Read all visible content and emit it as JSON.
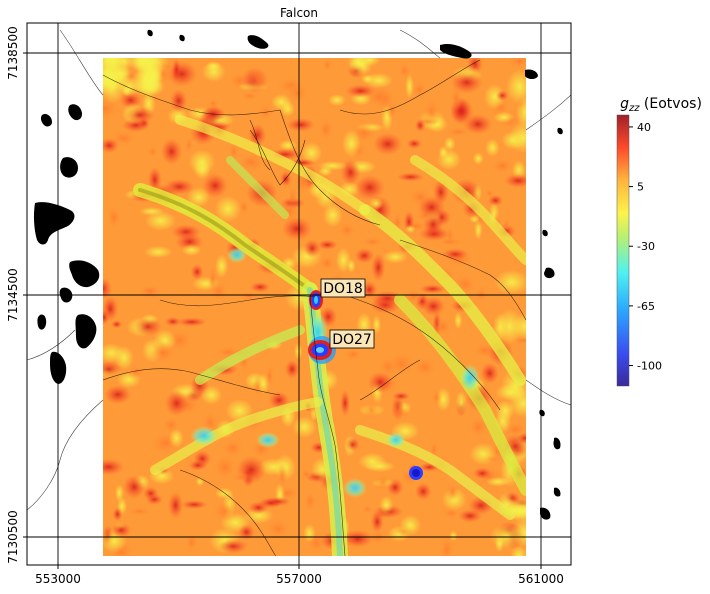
{
  "map": {
    "title": "Falcon",
    "x_ticks": [
      "553000",
      "557000",
      "561000"
    ],
    "y_ticks": [
      "7138500",
      "7134500",
      "7130500"
    ],
    "annotations": [
      "DO18",
      "DO27"
    ],
    "colorbar": {
      "title": "g_zz (Eotvos)",
      "title_base": "g",
      "title_sub": "zz",
      "title_unit": " (Eotvos)",
      "ticks": [
        "40",
        "5",
        "-30",
        "-65",
        "-100"
      ],
      "range": [
        -112,
        47
      ],
      "tick_values": [
        40,
        5,
        -30,
        -65,
        -100
      ]
    },
    "colors": {
      "background_high": "#ff6a1a",
      "background_mid": "#ffb43c",
      "anomaly_low": "#1a3cff",
      "anomaly_high": "#ff2020",
      "annotation_box": "#fbe6b8",
      "lakes": "#000000"
    }
  }
}
